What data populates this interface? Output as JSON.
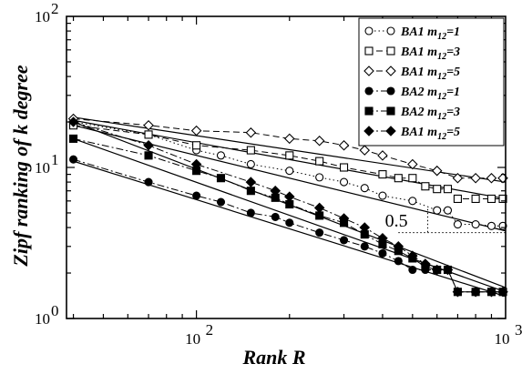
{
  "chart_data": {
    "type": "scatter",
    "xlabel": "Rank R",
    "ylabel": "Zipf ranking of k degree",
    "x_scale": "log",
    "y_scale": "log",
    "xlim": [
      38,
      1000
    ],
    "ylim": [
      1,
      100
    ],
    "x_ticks": [
      {
        "value": 100,
        "base": "10",
        "exp": "2"
      },
      {
        "value": 1000,
        "base": "10",
        "exp": "3"
      }
    ],
    "y_ticks": [
      {
        "value": 1,
        "base": "10",
        "exp": "0"
      },
      {
        "value": 10,
        "base": "10",
        "exp": "1"
      },
      {
        "value": 100,
        "base": "10",
        "exp": "2"
      }
    ],
    "legend_position": "top-right",
    "annotation": {
      "text": "0.5",
      "x": 430,
      "y": 4.3
    },
    "series": [
      {
        "name": "BA1",
        "sub": "12",
        "value": "1",
        "marker": "circle-open",
        "line": "dotted",
        "fit": {
          "from": [
            40,
            19.0
          ],
          "to": [
            1000,
            3.8
          ]
        },
        "points": [
          [
            40,
            20
          ],
          [
            70,
            16.5
          ],
          [
            100,
            13
          ],
          [
            120,
            12
          ],
          [
            150,
            10.5
          ],
          [
            200,
            9.5
          ],
          [
            250,
            8.6
          ],
          [
            300,
            8
          ],
          [
            350,
            7.3
          ],
          [
            400,
            6.5
          ],
          [
            500,
            6
          ],
          [
            600,
            5.2
          ],
          [
            650,
            5.2
          ],
          [
            700,
            4.2
          ],
          [
            800,
            4.2
          ],
          [
            900,
            4.1
          ],
          [
            980,
            4.1
          ]
        ]
      },
      {
        "name": "BA1",
        "sub": "12",
        "value": "3",
        "marker": "square-open",
        "line": "dashed",
        "fit": {
          "from": [
            40,
            20.5
          ],
          "to": [
            1000,
            6.2
          ]
        },
        "points": [
          [
            40,
            19
          ],
          [
            70,
            16.5
          ],
          [
            100,
            14
          ],
          [
            150,
            13
          ],
          [
            200,
            12
          ],
          [
            250,
            11
          ],
          [
            300,
            10
          ],
          [
            400,
            9
          ],
          [
            450,
            8.5
          ],
          [
            500,
            8.5
          ],
          [
            550,
            7.5
          ],
          [
            600,
            7.2
          ],
          [
            650,
            7.2
          ],
          [
            700,
            6.2
          ],
          [
            800,
            6.2
          ],
          [
            900,
            6.2
          ],
          [
            980,
            6.2
          ]
        ]
      },
      {
        "name": "BA1",
        "sub": "12",
        "value": "5",
        "marker": "diamond-open",
        "line": "dashed",
        "fit": {
          "from": [
            40,
            21.5
          ],
          "to": [
            1000,
            8.0
          ]
        },
        "points": [
          [
            40,
            21
          ],
          [
            70,
            19
          ],
          [
            100,
            17.5
          ],
          [
            150,
            17
          ],
          [
            200,
            15.5
          ],
          [
            250,
            15
          ],
          [
            300,
            14
          ],
          [
            350,
            13
          ],
          [
            400,
            12
          ],
          [
            500,
            10.5
          ],
          [
            600,
            9.5
          ],
          [
            700,
            8.5
          ],
          [
            800,
            8.5
          ],
          [
            900,
            8.5
          ],
          [
            980,
            8.5
          ]
        ]
      },
      {
        "name": "BA2",
        "sub": "12",
        "value": "1",
        "marker": "circle-filled",
        "line": "dashdot",
        "fit": {
          "from": [
            40,
            11.0
          ],
          "to": [
            1000,
            1.4
          ]
        },
        "points": [
          [
            40,
            11.3
          ],
          [
            70,
            8
          ],
          [
            100,
            6.5
          ],
          [
            120,
            5.9
          ],
          [
            150,
            5
          ],
          [
            180,
            4.7
          ],
          [
            200,
            4.3
          ],
          [
            250,
            3.7
          ],
          [
            300,
            3.3
          ],
          [
            350,
            3
          ],
          [
            400,
            2.7
          ],
          [
            450,
            2.4
          ],
          [
            500,
            2.1
          ],
          [
            550,
            2.1
          ],
          [
            600,
            2.1
          ],
          [
            650,
            2.1
          ],
          [
            700,
            1.5
          ],
          [
            800,
            1.5
          ],
          [
            900,
            1.5
          ],
          [
            980,
            1.5
          ]
        ]
      },
      {
        "name": "BA2",
        "sub": "12",
        "value": "3",
        "marker": "square-filled",
        "line": "dashdot",
        "fit": {
          "from": [
            40,
            15.5
          ],
          "to": [
            1000,
            1.5
          ]
        },
        "points": [
          [
            40,
            15.5
          ],
          [
            70,
            12
          ],
          [
            100,
            9.5
          ],
          [
            120,
            8.5
          ],
          [
            150,
            7
          ],
          [
            180,
            6.3
          ],
          [
            200,
            5.7
          ],
          [
            250,
            4.8
          ],
          [
            300,
            4.3
          ],
          [
            350,
            3.6
          ],
          [
            400,
            3.1
          ],
          [
            450,
            2.8
          ],
          [
            500,
            2.5
          ],
          [
            550,
            2.2
          ],
          [
            600,
            2.1
          ],
          [
            650,
            2.1
          ],
          [
            700,
            1.5
          ],
          [
            800,
            1.5
          ],
          [
            900,
            1.5
          ],
          [
            980,
            1.5
          ]
        ]
      },
      {
        "name": "BA1",
        "sub": "12",
        "value": "5",
        "marker": "diamond-filled",
        "line": "dashdot",
        "fit": {
          "from": [
            40,
            20.0
          ],
          "to": [
            1000,
            1.6
          ]
        },
        "points": [
          [
            40,
            20
          ],
          [
            70,
            14
          ],
          [
            100,
            10.5
          ],
          [
            150,
            8
          ],
          [
            180,
            7
          ],
          [
            200,
            6.4
          ],
          [
            250,
            5.4
          ],
          [
            300,
            4.6
          ],
          [
            350,
            4
          ],
          [
            400,
            3.4
          ],
          [
            450,
            3
          ],
          [
            500,
            2.6
          ],
          [
            550,
            2.3
          ],
          [
            600,
            2.1
          ],
          [
            650,
            2.1
          ],
          [
            700,
            1.5
          ],
          [
            800,
            1.5
          ],
          [
            900,
            1.5
          ],
          [
            980,
            1.5
          ]
        ]
      }
    ]
  }
}
